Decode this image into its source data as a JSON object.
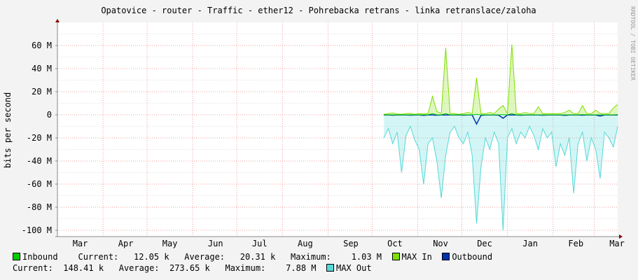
{
  "chart_data": {
    "type": "line",
    "title": "Opatovice - router - Traffic - ether12 - Pohrebacka retrans - linka retranslace/zaloha",
    "ylabel": "bits per second",
    "xlabel": "",
    "ylim": [
      -106,
      80
    ],
    "y_unit": "M",
    "y_ticks": [
      {
        "value": 60,
        "label": "60 M"
      },
      {
        "value": 40,
        "label": "40 M"
      },
      {
        "value": 20,
        "label": "20 M"
      },
      {
        "value": 0,
        "label": "0"
      },
      {
        "value": -20,
        "label": "-20 M"
      },
      {
        "value": -40,
        "label": "-40 M"
      },
      {
        "value": -60,
        "label": "-60 M"
      },
      {
        "value": -80,
        "label": "-80 M"
      },
      {
        "value": -100,
        "label": "-100 M"
      }
    ],
    "x_ticks": [
      "Mar",
      "Apr",
      "May",
      "Jun",
      "Jul",
      "Aug",
      "Sep",
      "Oct",
      "Nov",
      "Dec",
      "Jan",
      "Feb",
      "Mar"
    ],
    "grid": true,
    "watermark": "RRDTOOL / TOBI OETIKER",
    "x": [
      "Oct 9",
      "Oct 12",
      "Oct 15",
      "Oct 18",
      "Oct 21",
      "Oct 24",
      "Oct 27",
      "Oct 30",
      "Nov 2",
      "Nov 5",
      "Nov 8",
      "Nov 11",
      "Nov 14",
      "Nov 17",
      "Nov 20",
      "Nov 23",
      "Nov 26",
      "Nov 29",
      "Dec 2",
      "Dec 5",
      "Dec 8",
      "Dec 11",
      "Dec 14",
      "Dec 17",
      "Dec 20",
      "Dec 23",
      "Dec 26",
      "Dec 29",
      "Jan 1",
      "Jan 4",
      "Jan 7",
      "Jan 10",
      "Jan 13",
      "Jan 16",
      "Jan 19",
      "Jan 22",
      "Jan 25",
      "Jan 28",
      "Jan 31",
      "Feb 3",
      "Feb 6",
      "Feb 9",
      "Feb 12",
      "Feb 15",
      "Feb 18",
      "Feb 21",
      "Feb 24",
      "Feb 27",
      "Mar 2",
      "Mar 5",
      "Mar 8",
      "Mar 11",
      "Mar 14",
      "Mar 17"
    ],
    "series": [
      {
        "name": "MAX Out",
        "color": "#55d8d8",
        "values": [
          -20,
          -12,
          -25,
          -15,
          -50,
          -18,
          -10,
          -22,
          -30,
          -60,
          -25,
          -20,
          -40,
          -72,
          -35,
          -15,
          -10,
          -20,
          -25,
          -15,
          -35,
          -94,
          -45,
          -20,
          -30,
          -15,
          -25,
          -100,
          -20,
          -12,
          -25,
          -15,
          -20,
          -10,
          -18,
          -30,
          -12,
          -20,
          -15,
          -45,
          -25,
          -35,
          -20,
          -68,
          -25,
          -15,
          -40,
          -20,
          -30,
          -55,
          -15,
          -20,
          -28,
          -10
        ]
      },
      {
        "name": "MAX In",
        "color": "#7ee000",
        "values": [
          0.5,
          1,
          1.5,
          0.8,
          0.5,
          1,
          1.2,
          0.5,
          1,
          0.8,
          1,
          16,
          3,
          1,
          58,
          1,
          1,
          0.5,
          1,
          2,
          1,
          32,
          1,
          1,
          2,
          1,
          5,
          8,
          1,
          61,
          1,
          1,
          2,
          1,
          1,
          7,
          1,
          1,
          1,
          1,
          1,
          2,
          4,
          1,
          1,
          8,
          1,
          1,
          4,
          1,
          1,
          1,
          6,
          9
        ]
      },
      {
        "name": "Outbound",
        "color": "#0033aa",
        "values": [
          -0.2,
          -0.2,
          -0.3,
          -0.2,
          -0.2,
          -0.2,
          -0.3,
          -0.2,
          -0.2,
          -0.4,
          -0.2,
          -0.2,
          -0.3,
          -0.2,
          -0.2,
          -0.2,
          -0.2,
          -0.2,
          -0.3,
          -0.2,
          -0.2,
          -8,
          -0.5,
          -0.2,
          -0.2,
          -0.2,
          -0.3,
          -3,
          -0.2,
          -0.2,
          -0.2,
          -0.3,
          -0.2,
          -0.2,
          -0.2,
          -0.2,
          -0.3,
          -0.2,
          -0.2,
          -0.2,
          -0.2,
          -0.4,
          -0.2,
          -0.2,
          -0.2,
          -0.3,
          -0.2,
          -0.2,
          -0.2,
          -1,
          -0.2,
          -0.2,
          -0.2,
          -0.2
        ]
      },
      {
        "name": "Inbound",
        "color": "#00cc00",
        "values": [
          0.01,
          0.01,
          0.02,
          0.01,
          0.01,
          0.01,
          0.02,
          0.01,
          0.01,
          0.01,
          0.02,
          1,
          0.02,
          0.01,
          1,
          0.01,
          0.01,
          0.01,
          0.01,
          0.02,
          0.01,
          0.5,
          0.01,
          0.01,
          0.02,
          0.01,
          0.01,
          0.2,
          0.01,
          1,
          0.01,
          0.01,
          0.02,
          0.01,
          0.01,
          0.01,
          0.01,
          0.01,
          0.01,
          0.01,
          0.01,
          0.02,
          0.01,
          0.01,
          0.01,
          0.1,
          0.01,
          0.01,
          0.01,
          0.01,
          0.01,
          0.01,
          0.01,
          0.1
        ]
      }
    ]
  },
  "legend": {
    "inbound": {
      "label": "Inbound",
      "color": "#00cc00",
      "current_label": "Current:",
      "current": "12.05 k",
      "average_label": "Average:",
      "average": "20.31 k",
      "maximum_label": "Maximum:",
      "maximum": "1.03 M"
    },
    "max_in": {
      "label": "MAX In",
      "color": "#7ee000"
    },
    "outbound": {
      "label": "Outbound",
      "color": "#0033aa",
      "current_label": "Current:",
      "current": "148.41 k",
      "average_label": "Average:",
      "average": "273.65 k",
      "maximum_label": "Maximum:",
      "maximum": "7.88 M"
    },
    "max_out": {
      "label": "MAX Out",
      "color": "#55d8d8"
    }
  }
}
